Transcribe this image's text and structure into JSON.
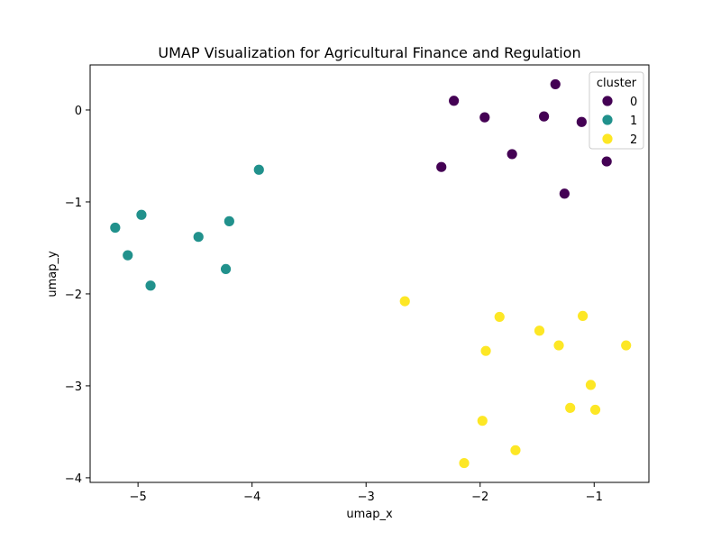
{
  "chart_data": {
    "type": "scatter",
    "title": "UMAP Visualization for Agricultural Finance and Regulation",
    "xlabel": "umap_x",
    "ylabel": "umap_y",
    "xlim": [
      -5.42,
      -0.52
    ],
    "ylim": [
      -4.05,
      0.49
    ],
    "xticks": [
      -5,
      -4,
      -3,
      -2,
      -1
    ],
    "yticks": [
      0,
      -1,
      -2,
      -3,
      -4
    ],
    "xtick_labels": [
      "−5",
      "−4",
      "−3",
      "−2",
      "−1"
    ],
    "ytick_labels": [
      "0",
      "−1",
      "−2",
      "−3",
      "−4"
    ],
    "grid": false,
    "legend": {
      "title": "cluster",
      "placement": "top-right"
    },
    "series": [
      {
        "name": "0",
        "color": "#440154",
        "points": [
          {
            "x": -2.23,
            "y": 0.1
          },
          {
            "x": -1.34,
            "y": 0.28
          },
          {
            "x": -1.96,
            "y": -0.08
          },
          {
            "x": -1.44,
            "y": -0.07
          },
          {
            "x": -1.11,
            "y": -0.13
          },
          {
            "x": -1.72,
            "y": -0.48
          },
          {
            "x": -0.89,
            "y": -0.56
          },
          {
            "x": -2.34,
            "y": -0.62
          },
          {
            "x": -1.26,
            "y": -0.91
          }
        ]
      },
      {
        "name": "1",
        "color": "#21918c",
        "points": [
          {
            "x": -3.94,
            "y": -0.65
          },
          {
            "x": -4.97,
            "y": -1.14
          },
          {
            "x": -5.2,
            "y": -1.28
          },
          {
            "x": -4.2,
            "y": -1.21
          },
          {
            "x": -4.47,
            "y": -1.38
          },
          {
            "x": -5.09,
            "y": -1.58
          },
          {
            "x": -4.23,
            "y": -1.73
          },
          {
            "x": -4.89,
            "y": -1.91
          }
        ]
      },
      {
        "name": "2",
        "color": "#fde725",
        "points": [
          {
            "x": -2.66,
            "y": -2.08
          },
          {
            "x": -1.83,
            "y": -2.25
          },
          {
            "x": -1.1,
            "y": -2.24
          },
          {
            "x": -1.48,
            "y": -2.4
          },
          {
            "x": -1.31,
            "y": -2.56
          },
          {
            "x": -0.72,
            "y": -2.56
          },
          {
            "x": -1.95,
            "y": -2.62
          },
          {
            "x": -1.03,
            "y": -2.99
          },
          {
            "x": -1.21,
            "y": -3.24
          },
          {
            "x": -0.99,
            "y": -3.26
          },
          {
            "x": -1.98,
            "y": -3.38
          },
          {
            "x": -1.69,
            "y": -3.7
          },
          {
            "x": -2.14,
            "y": -3.84
          }
        ]
      }
    ]
  }
}
